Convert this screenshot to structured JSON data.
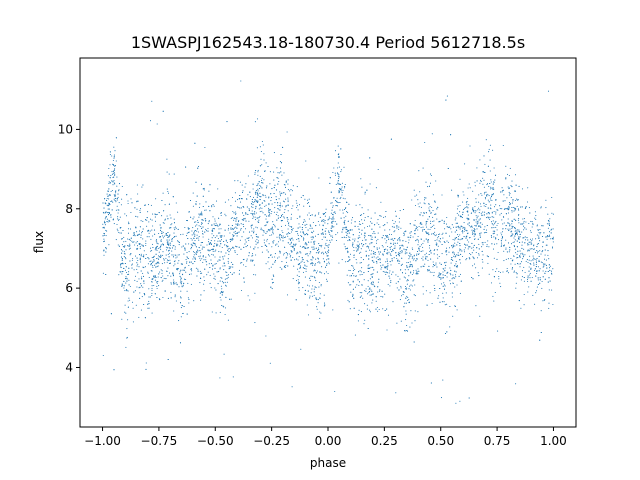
{
  "chart_data": {
    "type": "scatter",
    "title": "1SWASPJ162543.18-180730.4 Period 5612718.5s",
    "xlabel": "phase",
    "ylabel": "flux",
    "xlim": [
      -1.1,
      1.1
    ],
    "ylim": [
      2.5,
      11.8
    ],
    "xticks": [
      -1.0,
      -0.75,
      -0.5,
      -0.25,
      0.0,
      0.25,
      0.5,
      0.75,
      1.0
    ],
    "xtick_labels": [
      "−1.00",
      "−0.75",
      "−0.50",
      "−0.25",
      "0.00",
      "0.25",
      "0.50",
      "0.75",
      "1.00"
    ],
    "yticks": [
      4,
      6,
      8,
      10
    ],
    "ytick_labels": [
      "4",
      "6",
      "8",
      "10"
    ],
    "grid": false,
    "marker_color": "#1f77b4",
    "series": [
      {
        "x": [
          -1.0,
          -0.95,
          -0.9,
          -0.85,
          -0.8,
          -0.75,
          -0.7,
          -0.65,
          -0.6,
          -0.55,
          -0.5,
          -0.45,
          -0.4,
          -0.35,
          -0.3,
          -0.25,
          -0.2,
          -0.15,
          -0.1,
          -0.05,
          0.0,
          0.05,
          0.1,
          0.15,
          0.2,
          0.25,
          0.3,
          0.35,
          0.4,
          0.45,
          0.5,
          0.55,
          0.6,
          0.65,
          0.7,
          0.75,
          0.8,
          0.85,
          0.9,
          0.95,
          1.0
        ],
        "y": [
          7.2,
          8.8,
          6.4,
          7.0,
          6.6,
          6.9,
          7.1,
          6.3,
          7.2,
          7.4,
          6.8,
          6.5,
          7.6,
          7.4,
          8.2,
          7.3,
          7.9,
          7.0,
          7.1,
          6.6,
          7.2,
          8.8,
          6.4,
          7.0,
          6.6,
          6.9,
          7.1,
          6.3,
          7.2,
          7.4,
          6.8,
          6.5,
          7.6,
          7.4,
          8.2,
          7.3,
          7.9,
          7.0,
          7.1,
          6.6,
          7.2
        ],
        "spread": [
          0.7,
          0.6,
          1.0,
          1.1,
          0.9,
          0.8,
          0.8,
          0.9,
          0.9,
          0.9,
          1.0,
          0.9,
          0.8,
          0.9,
          1.0,
          0.9,
          0.9,
          0.8,
          0.9,
          0.9,
          0.7,
          0.6,
          1.0,
          1.1,
          0.9,
          0.8,
          0.8,
          0.9,
          0.9,
          0.9,
          1.0,
          0.9,
          0.8,
          0.9,
          1.0,
          0.9,
          0.9,
          0.8,
          0.9,
          0.9,
          0.7
        ]
      }
    ]
  }
}
